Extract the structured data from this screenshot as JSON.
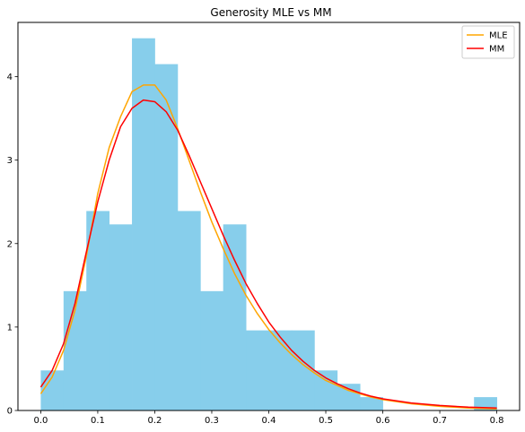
{
  "chart_data": {
    "type": "histogram",
    "title": "Generosity MLE vs MM",
    "xlabel": "",
    "ylabel": "",
    "xlim": [
      -0.04,
      0.84
    ],
    "ylim": [
      0,
      4.65
    ],
    "x_ticks": [
      0.0,
      0.1,
      0.2,
      0.3,
      0.4,
      0.5,
      0.6,
      0.7,
      0.8
    ],
    "x_tick_labels": [
      "0.0",
      "0.1",
      "0.2",
      "0.3",
      "0.4",
      "0.5",
      "0.6",
      "0.7",
      "0.8"
    ],
    "y_ticks": [
      0,
      1,
      2,
      3,
      4
    ],
    "y_tick_labels": [
      "0",
      "1",
      "2",
      "3",
      "4"
    ],
    "grid": false,
    "legend_position": "top-right",
    "histogram": {
      "color": "#87ceeb",
      "bin_edges": [
        0.0,
        0.04,
        0.08,
        0.12,
        0.16,
        0.2,
        0.24,
        0.28,
        0.32,
        0.36,
        0.4,
        0.44,
        0.48,
        0.52,
        0.56,
        0.6,
        0.64,
        0.68,
        0.72,
        0.76,
        0.8
      ],
      "densities": [
        0.48,
        1.43,
        2.39,
        2.23,
        4.46,
        4.15,
        2.39,
        1.43,
        2.23,
        0.96,
        0.96,
        0.96,
        0.48,
        0.32,
        0.16,
        0.0,
        0.0,
        0.0,
        0.0,
        0.16
      ]
    },
    "series": [
      {
        "name": "MLE",
        "color": "#ffa500",
        "x": [
          0.0,
          0.02,
          0.04,
          0.06,
          0.08,
          0.1,
          0.12,
          0.14,
          0.16,
          0.18,
          0.2,
          0.22,
          0.24,
          0.26,
          0.28,
          0.3,
          0.32,
          0.34,
          0.36,
          0.38,
          0.4,
          0.42,
          0.44,
          0.46,
          0.48,
          0.5,
          0.52,
          0.54,
          0.56,
          0.58,
          0.6,
          0.65,
          0.7,
          0.75,
          0.8
        ],
        "y": [
          0.2,
          0.4,
          0.72,
          1.2,
          1.85,
          2.6,
          3.15,
          3.52,
          3.82,
          3.9,
          3.9,
          3.72,
          3.38,
          3.0,
          2.62,
          2.26,
          1.94,
          1.64,
          1.38,
          1.16,
          0.97,
          0.81,
          0.67,
          0.55,
          0.45,
          0.36,
          0.3,
          0.24,
          0.2,
          0.16,
          0.13,
          0.08,
          0.05,
          0.03,
          0.02
        ]
      },
      {
        "name": "MM",
        "color": "#ff0000",
        "x": [
          0.0,
          0.02,
          0.04,
          0.06,
          0.08,
          0.1,
          0.12,
          0.14,
          0.16,
          0.18,
          0.2,
          0.22,
          0.24,
          0.26,
          0.28,
          0.3,
          0.32,
          0.34,
          0.36,
          0.38,
          0.4,
          0.42,
          0.44,
          0.46,
          0.48,
          0.5,
          0.52,
          0.54,
          0.56,
          0.58,
          0.6,
          0.65,
          0.7,
          0.75,
          0.8
        ],
        "y": [
          0.28,
          0.48,
          0.8,
          1.28,
          1.9,
          2.5,
          3.0,
          3.4,
          3.62,
          3.72,
          3.7,
          3.58,
          3.36,
          3.06,
          2.74,
          2.42,
          2.1,
          1.8,
          1.52,
          1.28,
          1.06,
          0.88,
          0.72,
          0.59,
          0.48,
          0.39,
          0.32,
          0.26,
          0.21,
          0.17,
          0.14,
          0.09,
          0.06,
          0.04,
          0.03
        ]
      }
    ]
  }
}
